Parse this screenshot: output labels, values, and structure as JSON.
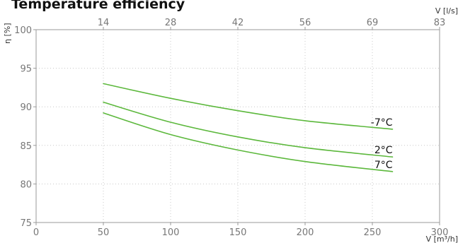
{
  "chart_data": {
    "type": "line",
    "title": "Temperature efficiency",
    "xlabel": "V [m³/h]",
    "ylabel": "η [%]",
    "x2label": "V [l/s]",
    "xlim": [
      0,
      300
    ],
    "ylim": [
      75,
      100
    ],
    "xticks": [
      0,
      50,
      100,
      150,
      200,
      250,
      300
    ],
    "yticks": [
      75,
      80,
      85,
      90,
      95,
      100
    ],
    "x2ticks": [
      {
        "label": "14",
        "x": 50
      },
      {
        "label": "28",
        "x": 100
      },
      {
        "label": "42",
        "x": 150
      },
      {
        "label": "56",
        "x": 200
      },
      {
        "label": "69",
        "x": 250
      },
      {
        "label": "83",
        "x": 300
      }
    ],
    "grid": true,
    "line_color": "#5cb83c",
    "series": [
      {
        "name": "-7°C",
        "x": [
          50,
          100,
          150,
          200,
          265
        ],
        "y": [
          93.0,
          91.1,
          89.5,
          88.2,
          87.1
        ]
      },
      {
        "name": "2°C",
        "x": [
          50,
          100,
          150,
          200,
          265
        ],
        "y": [
          90.6,
          88.0,
          86.1,
          84.7,
          83.5
        ]
      },
      {
        "name": "7°C",
        "x": [
          50,
          100,
          150,
          200,
          265
        ],
        "y": [
          89.2,
          86.4,
          84.4,
          82.9,
          81.6
        ]
      }
    ]
  }
}
